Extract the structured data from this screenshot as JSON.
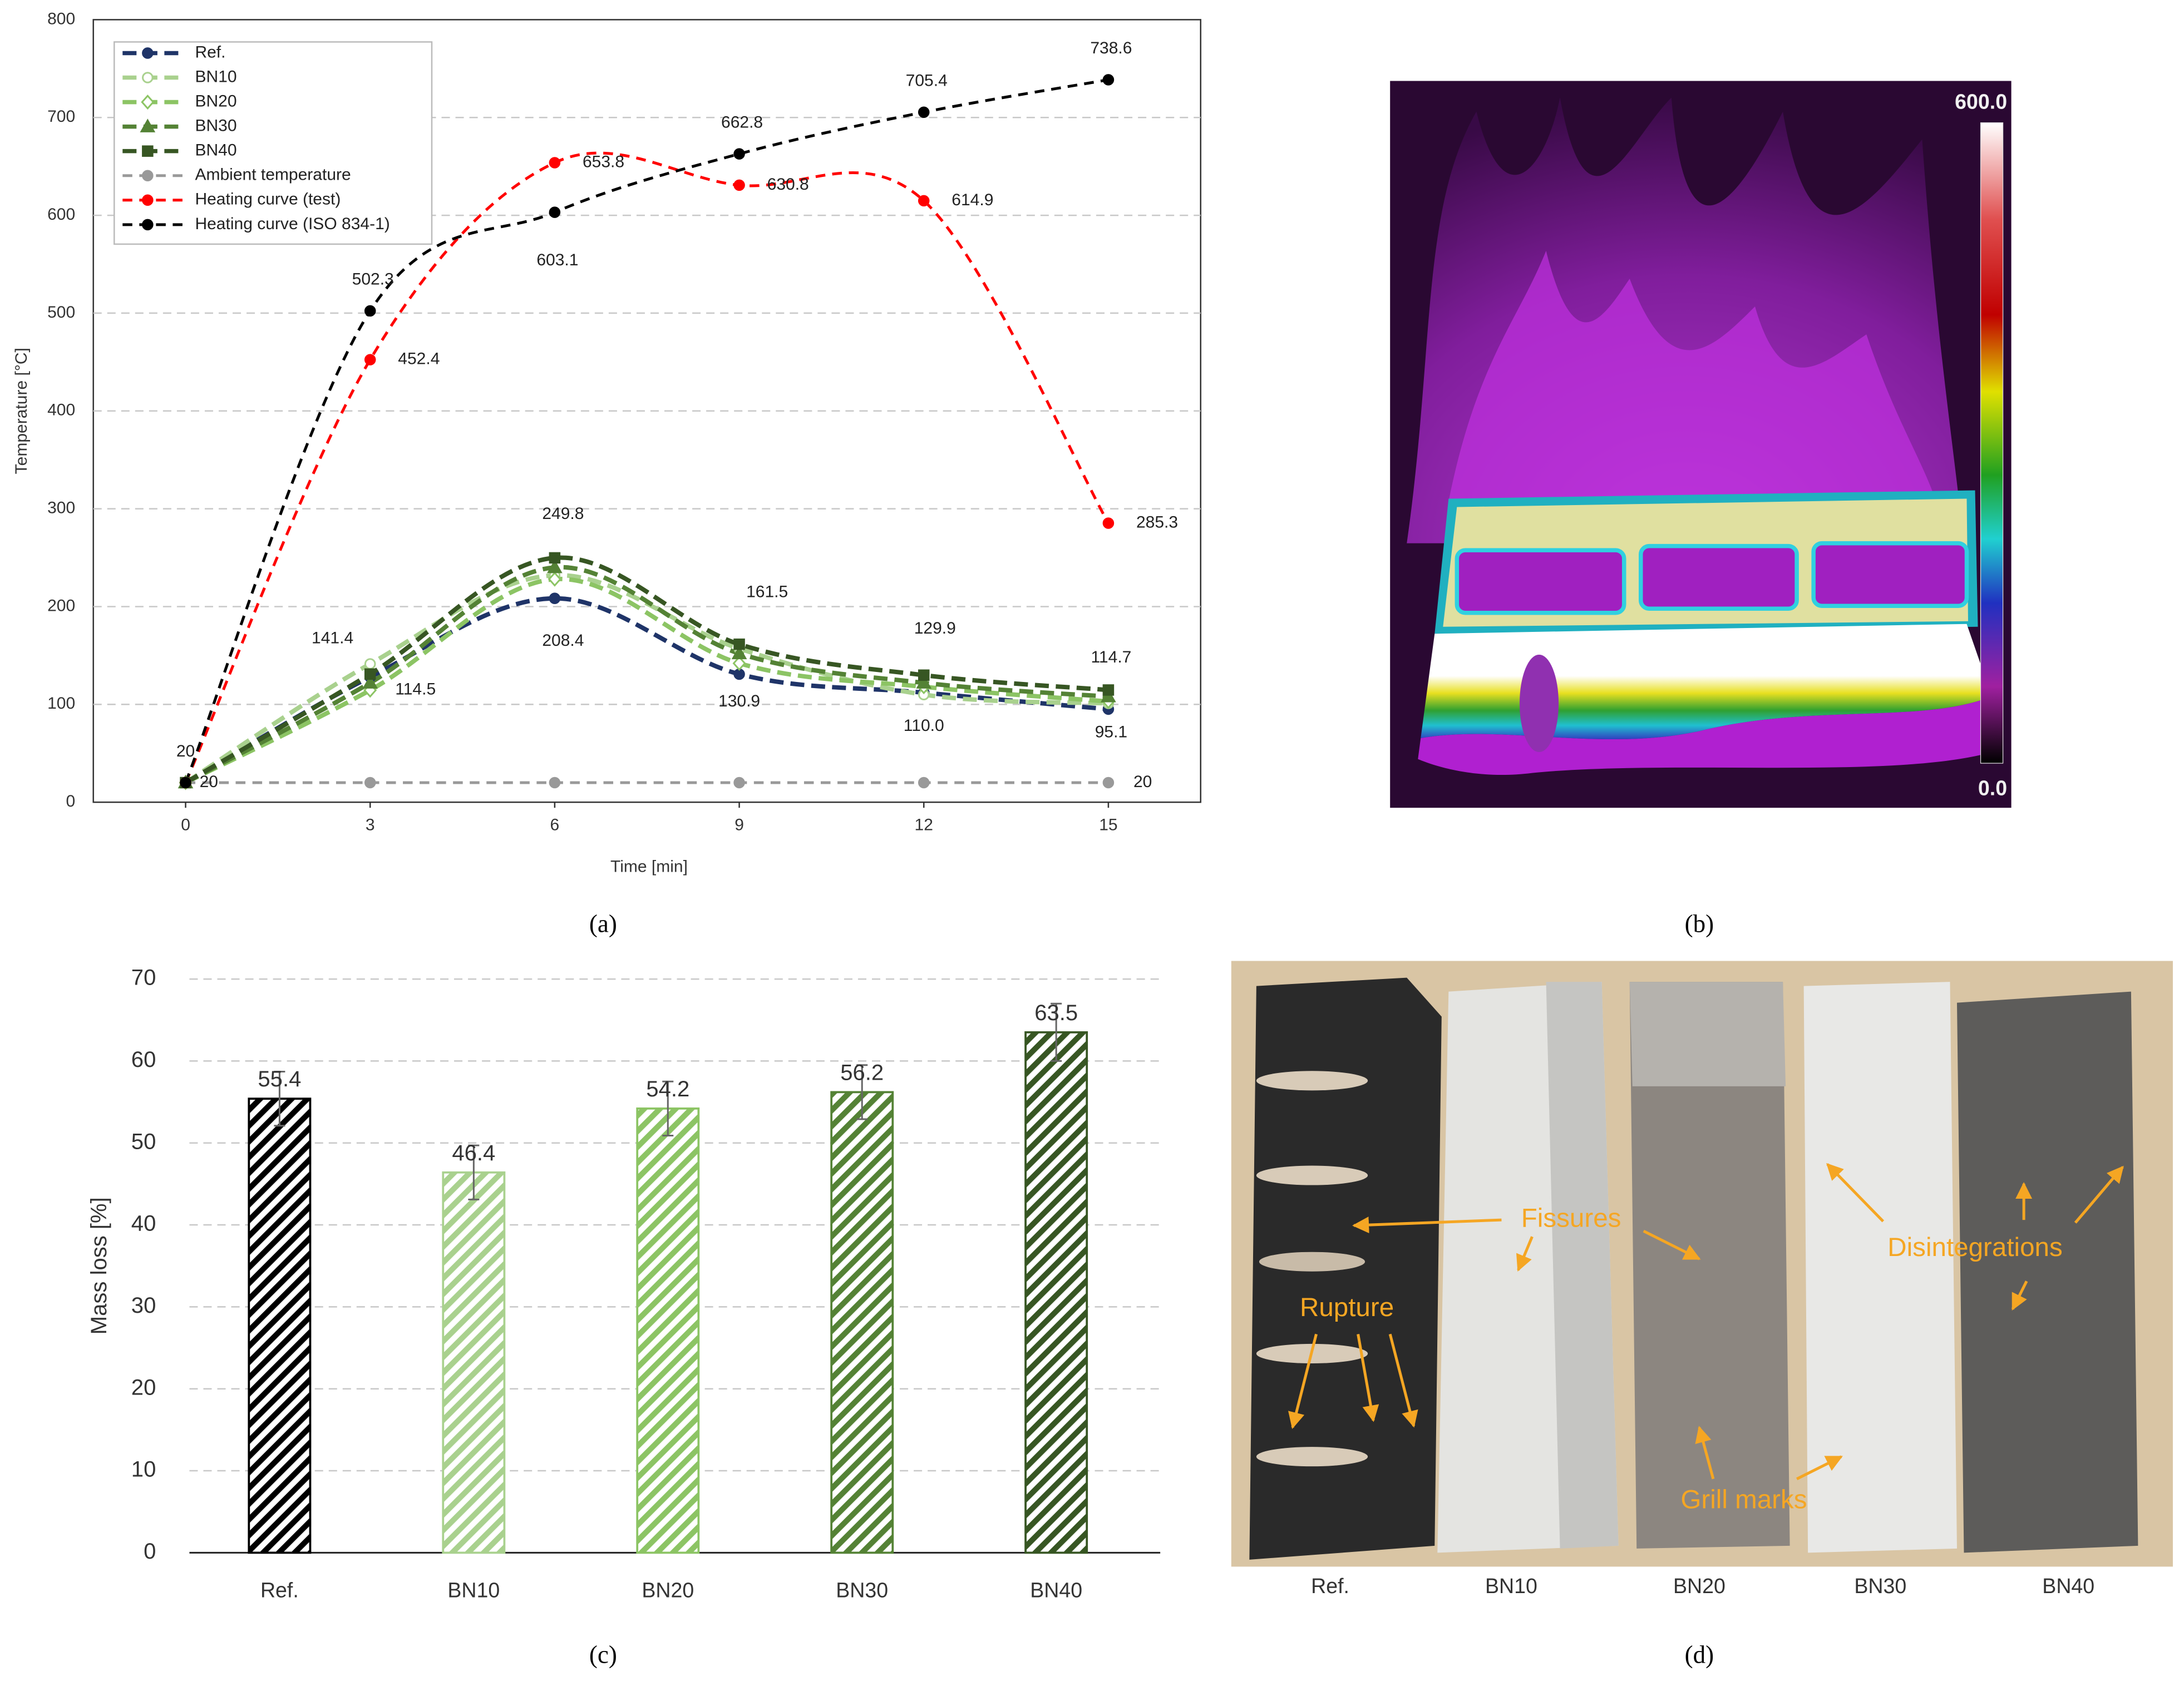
{
  "chart_data": [
    {
      "type": "line",
      "xlabel": "Time [min]",
      "ylabel": "Temperature [°C]",
      "x": [
        0,
        3,
        6,
        9,
        12,
        15
      ],
      "xlim": [
        -1.5,
        16.5
      ],
      "xticks": [
        0,
        3,
        6,
        9,
        12,
        15
      ],
      "ylim": [
        0,
        800
      ],
      "yticks": [
        0,
        100,
        200,
        300,
        400,
        500,
        600,
        700,
        800
      ],
      "grid": true,
      "legend": "upper left",
      "series": [
        {
          "name": "Ref.",
          "color": "#1f3468",
          "marker": "circle",
          "values": [
            20,
            128,
            208.4,
            130.9,
            112,
            95.1
          ],
          "value_labels": [
            null,
            null,
            "208.4",
            "130.9",
            null,
            "95.1"
          ]
        },
        {
          "name": "BN10",
          "color": "#a9d18e",
          "marker": "open-circle",
          "values": [
            20,
            141.4,
            232,
            157,
            110,
            101
          ],
          "value_labels": [
            null,
            "141.4",
            null,
            null,
            "110.0",
            null
          ]
        },
        {
          "name": "BN20",
          "color": "#8cc464",
          "marker": "diamond",
          "values": [
            20,
            114.5,
            228,
            142,
            118,
            103
          ],
          "value_labels": [
            null,
            "114.5",
            null,
            null,
            null,
            null
          ]
        },
        {
          "name": "BN30",
          "color": "#548235",
          "marker": "triangle",
          "values": [
            20,
            122,
            240,
            152,
            122,
            108
          ],
          "value_labels": [
            null,
            null,
            null,
            null,
            null,
            null
          ]
        },
        {
          "name": "BN40",
          "color": "#375623",
          "marker": "square",
          "values": [
            20,
            131,
            249.8,
            161.5,
            129.9,
            114.7
          ],
          "value_labels": [
            null,
            null,
            "249.8",
            "161.5",
            "129.9",
            "114.7"
          ]
        },
        {
          "name": "Ambient temperature",
          "color": "#999999",
          "marker": "circle",
          "values": [
            20,
            20,
            20,
            20,
            20,
            20
          ],
          "value_labels": [
            "20",
            null,
            null,
            null,
            null,
            "20"
          ]
        },
        {
          "name": "Heating curve (test)",
          "color": "#ff0000",
          "marker": "circle",
          "values": [
            20,
            452.4,
            653.8,
            630.8,
            614.9,
            285.3
          ],
          "value_labels": [
            null,
            "452.4",
            "653.8",
            "630.8",
            "614.9",
            "285.3"
          ]
        },
        {
          "name": "Heating curve (ISO 834-1)",
          "color": "#000000",
          "marker": "circle",
          "values": [
            20,
            502.3,
            603.1,
            662.8,
            705.4,
            738.6
          ],
          "value_labels": [
            "20",
            "502.3",
            "603.1",
            "662.8",
            "705.4",
            "738.6"
          ]
        }
      ]
    },
    {
      "type": "bar",
      "ylabel": "Mass loss [%]",
      "categories": [
        "Ref.",
        "BN10",
        "BN20",
        "BN30",
        "BN40"
      ],
      "values": [
        55.4,
        46.4,
        54.2,
        56.2,
        63.5
      ],
      "errors": [
        3.3,
        3.3,
        3.3,
        3.3,
        3.5
      ],
      "colors": [
        "#000000",
        "#a9d18e",
        "#8cc464",
        "#548235",
        "#375623"
      ],
      "ylim": [
        0,
        70
      ],
      "yticks": [
        0,
        10,
        20,
        30,
        40,
        50,
        60,
        70
      ],
      "grid": true
    }
  ],
  "panel_labels": [
    "(a)",
    "(b)",
    "(c)",
    "(d)"
  ],
  "thermal_image": {
    "colorbar_ticks": [
      {
        "value": 0,
        "label": "0.0"
      },
      {
        "value": 600,
        "label": "600.0"
      }
    ]
  },
  "photo": {
    "specimens": [
      "Ref.",
      "BN10",
      "BN20",
      "BN30",
      "BN40"
    ],
    "annotations": [
      "Fissures",
      "Rupture",
      "Disintegrations",
      "Grill marks"
    ]
  }
}
